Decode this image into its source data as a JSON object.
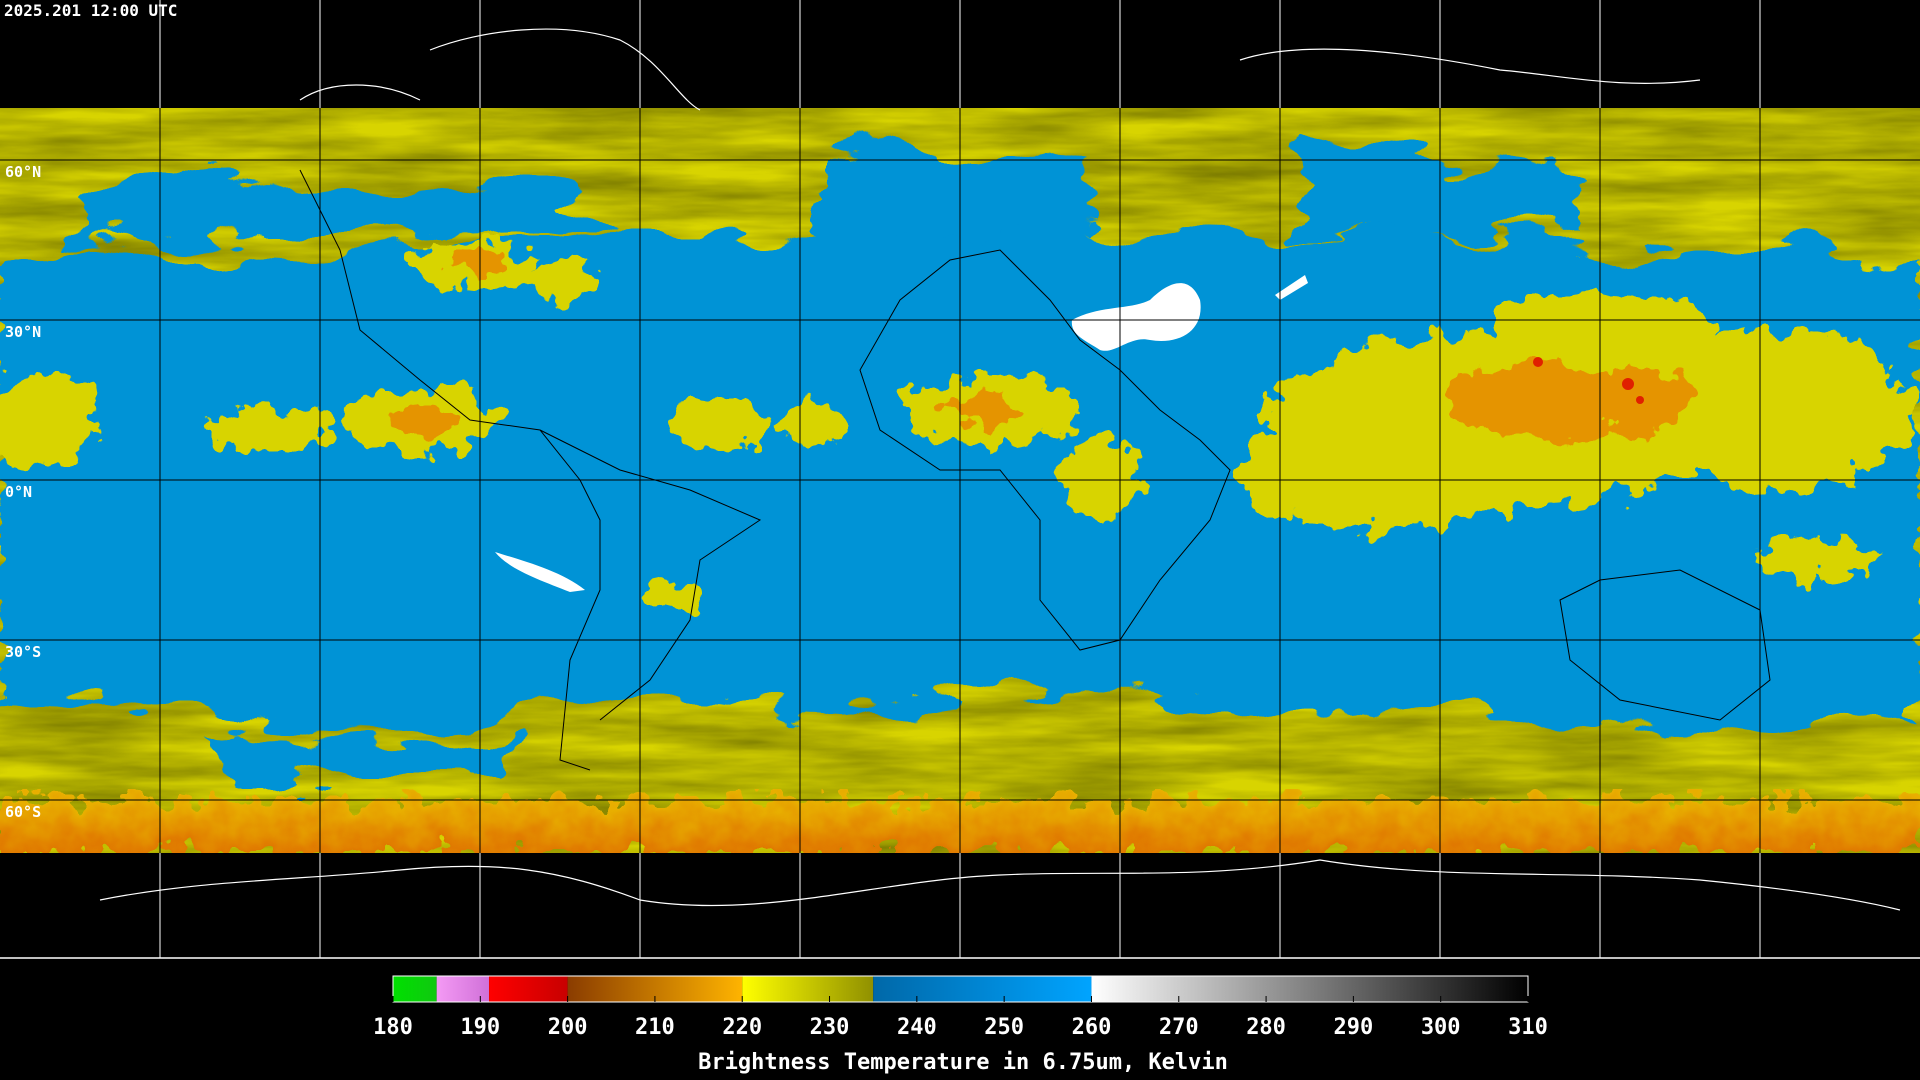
{
  "header": {
    "timestamp": "2025.201 12:00 UTC"
  },
  "map": {
    "latitude_labels": [
      "60°N",
      "30°N",
      "0°N",
      "30°S",
      "60°S"
    ]
  },
  "colorbar": {
    "title": "Brightness Temperature in 6.75um, Kelvin",
    "range": [
      180,
      310
    ],
    "ticks": [
      180,
      190,
      200,
      210,
      220,
      230,
      240,
      250,
      260,
      270,
      280,
      290,
      300,
      310
    ],
    "segments": [
      {
        "from": 180,
        "to": 185,
        "colors": [
          "#00e000",
          "#10c810"
        ]
      },
      {
        "from": 185,
        "to": 191,
        "colors": [
          "#f49af4",
          "#d070d8"
        ]
      },
      {
        "from": 191,
        "to": 200,
        "colors": [
          "#ff0000",
          "#c80000"
        ]
      },
      {
        "from": 200,
        "to": 220,
        "colors": [
          "#8a3c00",
          "#ffb400"
        ]
      },
      {
        "from": 220,
        "to": 235,
        "colors": [
          "#ffff00",
          "#909000"
        ]
      },
      {
        "from": 235,
        "to": 260,
        "colors": [
          "#0068a8",
          "#00a4ff"
        ]
      },
      {
        "from": 260,
        "to": 310,
        "colors": [
          "#ffffff",
          "#000000"
        ]
      }
    ]
  }
}
